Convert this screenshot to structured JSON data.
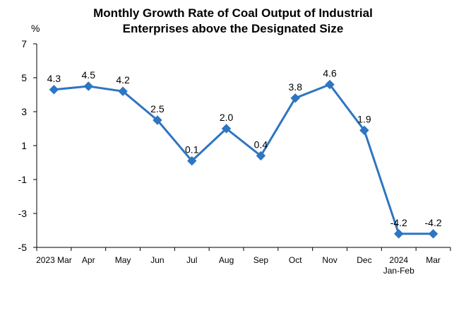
{
  "chart_data": {
    "type": "line",
    "title_lines": [
      "Monthly Growth Rate of Coal Output of Industrial",
      "Enterprises above the Designated Size"
    ],
    "y_unit": "%",
    "ylim": [
      -5,
      7
    ],
    "yticks": [
      7,
      5,
      3,
      1,
      -1,
      -3,
      -5
    ],
    "grid": false,
    "legend": "none",
    "series_color": "#2E75C2",
    "categories": [
      [
        "2023 Mar"
      ],
      [
        "Apr"
      ],
      [
        "May"
      ],
      [
        "Jun"
      ],
      [
        "Jul"
      ],
      [
        "Aug"
      ],
      [
        "Sep"
      ],
      [
        "Oct"
      ],
      [
        "Nov"
      ],
      [
        "Dec"
      ],
      [
        "2024",
        "Jan-Feb"
      ],
      [
        "Mar"
      ]
    ],
    "series": [
      {
        "values": [
          4.3,
          4.5,
          4.2,
          2.5,
          0.1,
          2.0,
          0.4,
          3.8,
          4.6,
          1.9,
          -4.2,
          -4.2
        ],
        "labels": [
          "4.3",
          "4.5",
          "4.2",
          "2.5",
          "0.1",
          "2.0",
          "0.4",
          "3.8",
          "4.6",
          "1.9",
          "-4.2",
          "-4.2"
        ]
      }
    ]
  }
}
